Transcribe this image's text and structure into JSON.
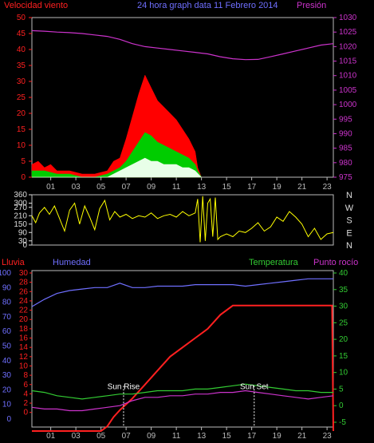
{
  "header": {
    "wind_label": "Velocidad viento",
    "title": "24 hora graph data  11 Febrero 2014",
    "pressure_label": "Presión"
  },
  "lower_header": {
    "rain_label": "Lluvia",
    "humidity_label": "Humedad",
    "temp_label": "Temperatura",
    "dew_label": "Punto rocío"
  },
  "colors": {
    "background": "#000000",
    "wind_gust": "#ff0000",
    "wind_avg": "#00cc00",
    "wind_base": "#e8ffe8",
    "pressure": "#cc33cc",
    "direction": "#ffff00",
    "rain": "#ff2020",
    "humidity": "#6f6fff",
    "temperature": "#33cc33",
    "dew_point": "#cc33cc",
    "axis_left": "#ff2020",
    "axis_right": "#cc33cc",
    "sun_marker": "#ffffff"
  },
  "chart_data": [
    {
      "type": "area",
      "name": "wind",
      "x_ticks": [
        "01",
        "03",
        "05",
        "07",
        "09",
        "11",
        "13",
        "15",
        "17",
        "19",
        "21",
        "23"
      ],
      "x_range": [
        0,
        24
      ],
      "y_left": {
        "range": [
          0,
          50
        ],
        "ticks": [
          0,
          5,
          10,
          15,
          20,
          25,
          30,
          35,
          40,
          45,
          50
        ],
        "label": "Velocidad viento"
      },
      "y_right": {
        "range": [
          975,
          1030
        ],
        "ticks": [
          975,
          980,
          985,
          990,
          995,
          1000,
          1005,
          1010,
          1015,
          1020,
          1025,
          1030
        ],
        "label": "Presión"
      },
      "series": [
        {
          "name": "gust",
          "x": [
            0,
            0.5,
            1,
            1.5,
            2,
            3,
            4,
            5,
            6,
            6.5,
            7,
            7.5,
            8,
            8.5,
            9,
            9.5,
            10,
            10.5,
            11,
            11.5,
            12,
            12.5,
            13,
            13.2,
            13.5
          ],
          "y": [
            4,
            5,
            3,
            4,
            2,
            2,
            1,
            1,
            2,
            5,
            6,
            12,
            19,
            26,
            32,
            28,
            24,
            22,
            20,
            18,
            15,
            12,
            8,
            3,
            0
          ]
        },
        {
          "name": "average",
          "x": [
            0,
            1,
            2,
            3,
            4,
            5,
            6,
            6.5,
            7,
            7.5,
            8,
            8.5,
            9,
            9.5,
            10,
            10.5,
            11,
            11.5,
            12,
            12.5,
            13,
            13.2,
            13.5
          ],
          "y": [
            2,
            2,
            1,
            1,
            0,
            0,
            1,
            2,
            3,
            5,
            8,
            11,
            14,
            13,
            11,
            10,
            9,
            8,
            7,
            6,
            4,
            2,
            0
          ]
        },
        {
          "name": "base",
          "x": [
            0,
            6,
            6.5,
            7,
            7.5,
            8,
            8.5,
            9,
            9.5,
            10,
            10.5,
            11,
            11.5,
            12,
            12.5,
            13,
            13.5
          ],
          "y": [
            0,
            0,
            1,
            2,
            3,
            4,
            5,
            6,
            5,
            5,
            4,
            4,
            4,
            3,
            3,
            2,
            0
          ]
        },
        {
          "name": "pressure",
          "x": [
            0,
            1,
            2,
            3,
            4,
            5,
            6,
            7,
            8,
            9,
            10,
            11,
            12,
            13,
            14,
            15,
            16,
            17,
            18,
            19,
            20,
            21,
            22,
            23,
            24
          ],
          "y": [
            1025.5,
            1025.3,
            1025,
            1024.8,
            1024.5,
            1024,
            1023.5,
            1022.5,
            1021,
            1020,
            1019.5,
            1019,
            1018.5,
            1018,
            1017.5,
            1016.5,
            1015.8,
            1015.5,
            1015.6,
            1016.5,
            1017.5,
            1018.5,
            1019.5,
            1020.5,
            1021
          ]
        }
      ]
    },
    {
      "type": "line",
      "name": "wind_direction",
      "y_range": [
        0,
        360
      ],
      "y_ticks": [
        0,
        30,
        90,
        150,
        210,
        270,
        300,
        360
      ],
      "compass_labels": [
        "N",
        "W",
        "S",
        "E",
        "N"
      ],
      "series": [
        {
          "name": "direction",
          "x": [
            0,
            0.3,
            0.6,
            1,
            1.4,
            1.8,
            2.2,
            2.6,
            3,
            3.4,
            3.8,
            4.2,
            4.6,
            5,
            5.4,
            5.8,
            6.2,
            6.6,
            7,
            7.5,
            8,
            8.5,
            9,
            9.5,
            10,
            10.5,
            11,
            11.5,
            12,
            12.5,
            13,
            13.2,
            13.4,
            13.6,
            13.8,
            14,
            14.2,
            14.4,
            14.6,
            14.8,
            15,
            15.5,
            16,
            16.5,
            17,
            17.5,
            18,
            18.5,
            19,
            19.5,
            20,
            20.5,
            21,
            21.5,
            22,
            22.5,
            23,
            23.5,
            24
          ],
          "y": [
            210,
            160,
            230,
            270,
            220,
            280,
            190,
            100,
            250,
            300,
            150,
            280,
            200,
            110,
            260,
            320,
            180,
            240,
            200,
            220,
            190,
            210,
            200,
            230,
            190,
            210,
            220,
            200,
            240,
            210,
            230,
            330,
            20,
            350,
            30,
            300,
            330,
            60,
            340,
            40,
            60,
            80,
            60,
            100,
            90,
            120,
            160,
            100,
            130,
            200,
            170,
            240,
            200,
            150,
            60,
            120,
            40,
            80,
            90
          ]
        }
      ]
    },
    {
      "type": "line",
      "name": "rain_humidity_temperature",
      "x_ticks": [
        "01",
        "03",
        "05",
        "07",
        "09",
        "11",
        "13",
        "15",
        "17",
        "19",
        "21",
        "23"
      ],
      "y_humidity": {
        "range": [
          0,
          100
        ],
        "ticks": [
          0,
          10,
          20,
          30,
          40,
          50,
          60,
          70,
          80,
          90,
          100
        ]
      },
      "y_rain": {
        "range": [
          -4,
          30
        ],
        "ticks": [
          0,
          2,
          4,
          6,
          8,
          10,
          12,
          14,
          16,
          18,
          20,
          22,
          24,
          26,
          28,
          30
        ]
      },
      "y_temp": {
        "range": [
          -5,
          40
        ],
        "ticks": [
          -5,
          0,
          5,
          10,
          15,
          20,
          25,
          30,
          35,
          40
        ]
      },
      "series": [
        {
          "name": "rain",
          "x": [
            0,
            1,
            2,
            3,
            4,
            5,
            5.5,
            6,
            6.5,
            7,
            8,
            9,
            10,
            11,
            12,
            13,
            14,
            15,
            16,
            17,
            18,
            19,
            20,
            21,
            22,
            23,
            23.9,
            24
          ],
          "y": [
            -4,
            -4,
            -4,
            -4,
            -4,
            -4,
            -4,
            -3,
            -1,
            0.5,
            3,
            6,
            9,
            12,
            14,
            16,
            18,
            21,
            23,
            23,
            23,
            23,
            23,
            23,
            23,
            23,
            23,
            -4
          ]
        },
        {
          "name": "humidity",
          "x": [
            0,
            1,
            2,
            3,
            4,
            5,
            6,
            7,
            8,
            9,
            10,
            11,
            12,
            13,
            14,
            15,
            16,
            17,
            18,
            19,
            20,
            21,
            22,
            23,
            24
          ],
          "y": [
            77,
            82,
            86,
            88,
            89,
            90,
            90,
            93,
            90,
            90,
            91,
            91,
            91,
            92,
            92,
            92,
            92,
            91,
            92,
            93,
            94,
            95,
            96,
            96,
            96
          ]
        },
        {
          "name": "temperature",
          "x": [
            0,
            1,
            2,
            3,
            4,
            5,
            6,
            7,
            8,
            9,
            10,
            11,
            12,
            13,
            14,
            15,
            16,
            17,
            18,
            19,
            20,
            21,
            22,
            23,
            24
          ],
          "y": [
            4.5,
            4,
            3,
            2.5,
            2,
            2.5,
            3,
            3.5,
            3.5,
            4,
            4.5,
            4.5,
            4.5,
            5,
            5,
            5.5,
            6,
            6.5,
            6,
            5.5,
            5,
            4.5,
            4.5,
            4,
            4
          ]
        },
        {
          "name": "dew_point",
          "x": [
            0,
            1,
            2,
            3,
            4,
            5,
            6,
            7,
            8,
            9,
            10,
            11,
            12,
            13,
            14,
            15,
            16,
            17,
            18,
            19,
            20,
            21,
            22,
            23,
            24
          ],
          "y": [
            -0.5,
            -1,
            -1,
            -1.5,
            -1.5,
            -1,
            -0.5,
            0,
            1.5,
            2.5,
            2.5,
            3,
            3,
            3.5,
            3.5,
            4,
            4,
            4.5,
            4,
            3.5,
            3,
            2.5,
            2,
            2.5,
            3
          ]
        }
      ],
      "annotations": [
        {
          "label": "Sun Rise",
          "x": 7.3
        },
        {
          "label": "Sun Set",
          "x": 17.7
        }
      ]
    }
  ]
}
